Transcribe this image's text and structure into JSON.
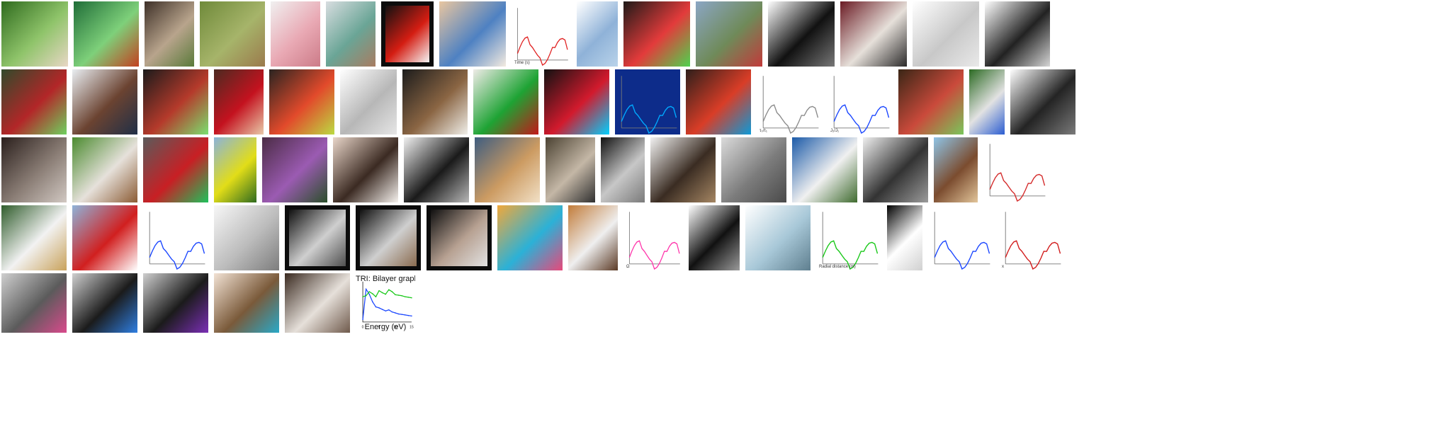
{
  "gallery": {
    "rows": [
      {
        "row": 1,
        "items": [
          {
            "id": "r1-cabbage",
            "kind": "photo",
            "subject": "cabbage held in hands",
            "palette": [
              "#2f6b1e",
              "#8fc46a",
              "#e8d7c5"
            ]
          },
          {
            "id": "r1-hummingbird",
            "kind": "photo",
            "subject": "hummingbird on branch",
            "palette": [
              "#1f6d38",
              "#7ed07a",
              "#c2401f"
            ]
          },
          {
            "id": "r1-woman-dress",
            "kind": "photo",
            "subject": "woman in dress near cart",
            "palette": [
              "#3e3028",
              "#b8a48c",
              "#5a7a3a"
            ]
          },
          {
            "id": "r1-gazelle",
            "kind": "photo",
            "subject": "gazelle on grass",
            "palette": [
              "#6f8a3a",
              "#a6b46a",
              "#9b7a4c"
            ]
          },
          {
            "id": "r1-piggy-bank",
            "kind": "photo",
            "subject": "pink piggy bank",
            "palette": [
              "#f0f0f0",
              "#e9a9b4",
              "#cc7b88"
            ]
          },
          {
            "id": "r1-man-lab",
            "kind": "photo",
            "subject": "man holding test tube",
            "palette": [
              "#d8dde0",
              "#6aa596",
              "#a87c61"
            ]
          },
          {
            "id": "r1-red-pepper",
            "kind": "photo",
            "subject": "red bell pepper",
            "palette": [
              "#111111",
              "#d41d12",
              "#f4f4f4"
            ],
            "framed": true
          },
          {
            "id": "r1-two-boys",
            "kind": "photo",
            "subject": "two boys lying down",
            "palette": [
              "#e9c6a0",
              "#4e81c2",
              "#f4ebe0"
            ]
          },
          {
            "id": "r1-line-plot",
            "kind": "chart",
            "subject": "red line plot",
            "palette": [
              "#ffffff",
              "#e02020",
              "#aaaaaa"
            ],
            "caption": "Time (s)"
          },
          {
            "id": "r1-web-ui",
            "kind": "ui",
            "subject": "web page screenshot",
            "palette": [
              "#ffffff",
              "#8fb2d8",
              "#b9d3ea"
            ]
          },
          {
            "id": "r1-cats-mask",
            "kind": "photo",
            "subject": "cats with red/green masks",
            "palette": [
              "#1e1a18",
              "#e33b3b",
              "#4ed34e"
            ]
          },
          {
            "id": "r1-cyclists",
            "kind": "photo",
            "subject": "cyclists on road",
            "palette": [
              "#8ba6c4",
              "#6f8a59",
              "#c23a3a"
            ]
          },
          {
            "id": "r1-people-sketch",
            "kind": "photo",
            "subject": "black-white people sketch",
            "palette": [
              "#ffffff",
              "#111111",
              "#777777"
            ]
          },
          {
            "id": "r1-dog-cat",
            "kind": "photo",
            "subject": "dog and cat on couch",
            "palette": [
              "#6b1b24",
              "#e6e0da",
              "#2b2a2a"
            ]
          },
          {
            "id": "r1-edge-sketch",
            "kind": "photo",
            "subject": "edge sketch",
            "palette": [
              "#ffffff",
              "#c8c8c8",
              "#e9e9e9"
            ]
          },
          {
            "id": "r1-outline",
            "kind": "photo",
            "subject": "animal outline",
            "palette": [
              "#ffffff",
              "#222222",
              "#d6d6d6"
            ]
          }
        ]
      },
      {
        "row": 2,
        "items": [
          {
            "id": "r2-river-mask",
            "kind": "photo",
            "subject": "river with red mask",
            "palette": [
              "#314a2b",
              "#b32628",
              "#6fd15f"
            ]
          },
          {
            "id": "r2-horse-people",
            "kind": "photo",
            "subject": "people with horse",
            "palette": [
              "#e9eef2",
              "#6b4331",
              "#1f2f47"
            ]
          },
          {
            "id": "r2-vending-mask",
            "kind": "photo",
            "subject": "bike with red/green mask",
            "palette": [
              "#1b1b1b",
              "#b53a2b",
              "#7be06f"
            ]
          },
          {
            "id": "r2-woman-red",
            "kind": "photo",
            "subject": "woman in red dress",
            "palette": [
              "#4c2a20",
              "#c4121f",
              "#e8c9a9"
            ]
          },
          {
            "id": "r2-two-women-mask",
            "kind": "photo",
            "subject": "two women with masks",
            "palette": [
              "#2a2421",
              "#e24a2b",
              "#bcdb42"
            ]
          },
          {
            "id": "r2-line-sketch",
            "kind": "photo",
            "subject": "line sketch",
            "palette": [
              "#ffffff",
              "#b7b7b7",
              "#e6e6e6"
            ]
          },
          {
            "id": "r2-cow",
            "kind": "photo",
            "subject": "cow",
            "palette": [
              "#1c1c1c",
              "#8a6543",
              "#f0efe9"
            ]
          },
          {
            "id": "r2-room-mask",
            "kind": "photo",
            "subject": "room with green/red mask",
            "palette": [
              "#efebe7",
              "#1ea334",
              "#c21818"
            ]
          },
          {
            "id": "r2-pose-banner",
            "kind": "photo",
            "subject": "pose skeleton banner",
            "palette": [
              "#121212",
              "#d21a2d",
              "#00d0ff"
            ]
          },
          {
            "id": "r2-heatmap",
            "kind": "chart",
            "subject": "blue heatmap",
            "palette": [
              "#0d2c8a",
              "#00aaff",
              "#d51020"
            ]
          },
          {
            "id": "r2-kitchen-art",
            "kind": "photo",
            "subject": "stylized kitchen",
            "palette": [
              "#2e1f1b",
              "#d93d27",
              "#0c9ad8"
            ]
          },
          {
            "id": "r2-curves",
            "kind": "chart",
            "subject": "decaying curves",
            "palette": [
              "#ffffff",
              "#8b8b8b",
              "#e24f4f"
            ],
            "caption": "τ₀/τ₁"
          },
          {
            "id": "r2-multi-curves",
            "kind": "chart",
            "subject": "multi-series curves",
            "palette": [
              "#ffffff",
              "#1a46ff",
              "#d11a1a"
            ],
            "caption": "J₂/J₁"
          },
          {
            "id": "r2-room-box",
            "kind": "photo",
            "subject": "room with boxes",
            "palette": [
              "#3a2616",
              "#ca4a3b",
              "#7ac65b"
            ]
          },
          {
            "id": "r2-skater-pose",
            "kind": "photo",
            "subject": "skater pose",
            "palette": [
              "#2b6a22",
              "#e2e2e2",
              "#2b5dd1"
            ]
          },
          {
            "id": "r2-speaker",
            "kind": "photo",
            "subject": "people at podium",
            "palette": [
              "#ffffff",
              "#242424",
              "#7a7a7a"
            ]
          }
        ]
      },
      {
        "row": 3,
        "items": [
          {
            "id": "r3-memorial",
            "kind": "photo",
            "subject": "memorial plaque",
            "palette": [
              "#2a1f1c",
              "#8a7d75",
              "#d1c8c2"
            ]
          },
          {
            "id": "r3-basset",
            "kind": "photo",
            "subject": "basset hound",
            "palette": [
              "#4b8b2f",
              "#e6e1db",
              "#8b5b34"
            ]
          },
          {
            "id": "r3-street-mask",
            "kind": "photo",
            "subject": "street scene with mask",
            "palette": [
              "#5b5b5b",
              "#c81f24",
              "#1fc15b"
            ]
          },
          {
            "id": "r3-tree-field",
            "kind": "photo",
            "subject": "tree in yellow field",
            "palette": [
              "#8bb3da",
              "#e2dd18",
              "#2f6b1f"
            ]
          },
          {
            "id": "r3-car",
            "kind": "photo",
            "subject": "sports car",
            "palette": [
              "#4b2c45",
              "#9b5bb2",
              "#2b4f2a"
            ]
          },
          {
            "id": "r3-two-women",
            "kind": "photo",
            "subject": "two women",
            "palette": [
              "#e9d6c9",
              "#3b2a22",
              "#f6f2ee"
            ]
          },
          {
            "id": "r3-posters",
            "kind": "photo",
            "subject": "posters",
            "palette": [
              "#f1f1f1",
              "#1a1a1a",
              "#b7b7b7"
            ]
          },
          {
            "id": "r3-spaniel",
            "kind": "photo",
            "subject": "spaniel",
            "palette": [
              "#3f5d80",
              "#cc9b62",
              "#f2e1c7"
            ]
          },
          {
            "id": "r3-man-fish",
            "kind": "photo",
            "subject": "man crouching with fish",
            "palette": [
              "#4b4232",
              "#c4b7a6",
              "#2f2f2f"
            ]
          },
          {
            "id": "r3-old-man",
            "kind": "photo",
            "subject": "old man in coat",
            "palette": [
              "#111111",
              "#c7c7c7",
              "#7a7a7a"
            ]
          },
          {
            "id": "r3-yorkie",
            "kind": "photo",
            "subject": "yorkshire terrier",
            "palette": [
              "#f2f2f2",
              "#3a2c22",
              "#a58663"
            ]
          },
          {
            "id": "r3-dome",
            "kind": "photo",
            "subject": "dome building",
            "palette": [
              "#dbdbdb",
              "#7c7c7c",
              "#4a4a4a"
            ]
          },
          {
            "id": "r3-church",
            "kind": "photo",
            "subject": "white church",
            "palette": [
              "#1b5aa8",
              "#f0f0f0",
              "#3f6b2f"
            ]
          },
          {
            "id": "r3-lizard",
            "kind": "photo",
            "subject": "lizard on leaf",
            "palette": [
              "#efefef",
              "#333333",
              "#9b9b9b"
            ]
          },
          {
            "id": "r3-guitar",
            "kind": "photo",
            "subject": "man with guitar",
            "palette": [
              "#8fc4e6",
              "#7b4c2f",
              "#e2c59a"
            ]
          },
          {
            "id": "r3-heatmaps",
            "kind": "chart",
            "subject": "grid of heatmaps",
            "palette": [
              "#ffffff",
              "#d42a2a",
              "#1a4be2"
            ]
          }
        ]
      },
      {
        "row": 4,
        "items": [
          {
            "id": "r4-baseball",
            "kind": "photo",
            "subject": "baseball player",
            "palette": [
              "#2f5c2b",
              "#f2f2f2",
              "#c9a25b"
            ]
          },
          {
            "id": "r4-jet-mask",
            "kind": "photo",
            "subject": "jet with red mask",
            "palette": [
              "#8fb3d9",
              "#d11f1f",
              "#ffffff"
            ]
          },
          {
            "id": "r4-trajectories",
            "kind": "chart",
            "subject": "trajectory plot",
            "palette": [
              "#ffffff",
              "#1a46ff",
              "#18c818"
            ]
          },
          {
            "id": "r4-statue",
            "kind": "photo",
            "subject": "statue texture",
            "palette": [
              "#f7f7f7",
              "#bcbcbc",
              "#7d7d7d"
            ]
          },
          {
            "id": "r4-field-bw",
            "kind": "photo",
            "subject": "black-white field",
            "palette": [
              "#101010",
              "#cfcfcf",
              "#4f4f4f"
            ],
            "framed": true
          },
          {
            "id": "r4-old-couple",
            "kind": "photo",
            "subject": "old couple",
            "palette": [
              "#101010",
              "#cfcfcf",
              "#8a6b4f"
            ],
            "framed": true
          },
          {
            "id": "r4-old-man-plate",
            "kind": "photo",
            "subject": "old man with plate",
            "palette": [
              "#101010",
              "#b7a192",
              "#e2e2e2"
            ],
            "framed": true
          },
          {
            "id": "r4-table-color",
            "kind": "photo",
            "subject": "colorful table",
            "palette": [
              "#f2a83a",
              "#2bb1d7",
              "#e7487a"
            ]
          },
          {
            "id": "r4-kitchen",
            "kind": "photo",
            "subject": "kitchen interior",
            "palette": [
              "#c27c3a",
              "#efefef",
              "#5b3a25"
            ]
          },
          {
            "id": "r4-energy",
            "kind": "chart",
            "subject": "energy curves",
            "palette": [
              "#ffffff",
              "#ff33aa",
              "#d11a1a"
            ],
            "caption": "Ω"
          },
          {
            "id": "r4-headphones",
            "kind": "photo",
            "subject": "headphones",
            "palette": [
              "#ffffff",
              "#111111",
              "#9b9b9b"
            ]
          },
          {
            "id": "r4-bottle",
            "kind": "photo",
            "subject": "water bottle",
            "palette": [
              "#ffffff",
              "#a8c8d8",
              "#5f7f8f"
            ]
          },
          {
            "id": "r4-green-noise",
            "kind": "chart",
            "subject": "green noise plots",
            "palette": [
              "#ffffff",
              "#18c818",
              "#aaaaaa"
            ],
            "caption": "Radial distance (m)"
          },
          {
            "id": "r4-silhouette",
            "kind": "photo",
            "subject": "silhouette",
            "palette": [
              "#000000",
              "#ffffff",
              "#d0d0d0"
            ]
          },
          {
            "id": "r4-scatter",
            "kind": "chart",
            "subject": "blue scatter",
            "palette": [
              "#ffffff",
              "#1a46ff",
              "#888888"
            ]
          },
          {
            "id": "r4-surface",
            "kind": "chart",
            "subject": "3D surface",
            "palette": [
              "#ffffff",
              "#d11a1a",
              "#1a46ff"
            ],
            "caption": "x"
          }
        ]
      },
      {
        "row": 5,
        "items": [
          {
            "id": "r5-cups-1",
            "kind": "photo",
            "subject": "cups on table with color",
            "palette": [
              "#cfcfcf",
              "#5b5b5b",
              "#d94a8c"
            ]
          },
          {
            "id": "r5-cups-2",
            "kind": "photo",
            "subject": "cups with object",
            "palette": [
              "#cfcfcf",
              "#1b1b1b",
              "#2f7fe2"
            ]
          },
          {
            "id": "r5-cups-3",
            "kind": "photo",
            "subject": "cups variation",
            "palette": [
              "#cfcfcf",
              "#1b1b1b",
              "#7b2fb6"
            ]
          },
          {
            "id": "r5-box",
            "kind": "photo",
            "subject": "box with items",
            "palette": [
              "#f2e2d4",
              "#7a5a3a",
              "#29a9c8"
            ]
          },
          {
            "id": "r5-bedroom",
            "kind": "photo",
            "subject": "bedroom",
            "palette": [
              "#3a2a20",
              "#e6e0da",
              "#6f5a4c"
            ]
          },
          {
            "id": "r5-graphene",
            "kind": "chart",
            "subject": "graphene spectra",
            "palette": [
              "#ffffff",
              "#1a46ff",
              "#18c818"
            ],
            "title": "TRI: Bilayer graphene",
            "xlabel": "Energy (eV)"
          }
        ]
      }
    ]
  },
  "chart_data": [
    {
      "type": "line",
      "title": "TRI: Bilayer graphene",
      "xlabel": "Energy (eV)",
      "ylabel": "",
      "x": [
        0,
        1,
        2,
        3,
        4,
        5,
        6,
        7,
        8,
        9,
        10,
        11,
        12,
        13,
        14,
        15
      ],
      "series": [
        {
          "name": "",
          "values": [
            0.05,
            0.65,
            0.55,
            0.4,
            0.3,
            0.28,
            0.25,
            0.22,
            0.24,
            0.2,
            0.18,
            0.16,
            0.15,
            0.14,
            0.13,
            0.12
          ]
        },
        {
          "name": "",
          "values": [
            0.5,
            0.52,
            0.6,
            0.56,
            0.5,
            0.62,
            0.58,
            0.55,
            0.64,
            0.6,
            0.54,
            0.53,
            0.52,
            0.5,
            0.49,
            0.48
          ]
        }
      ],
      "xlim": [
        0,
        15
      ],
      "ylim": [
        0,
        0.8
      ]
    }
  ]
}
